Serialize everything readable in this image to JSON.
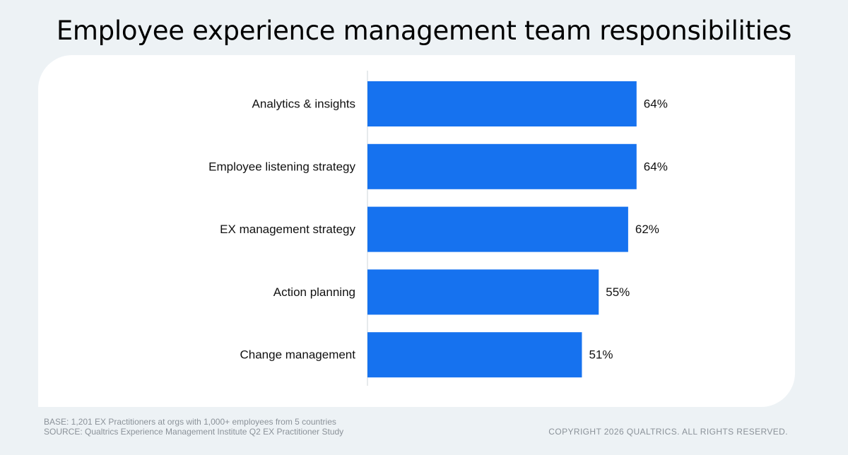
{
  "title": "Employee experience management team responsibilities",
  "footer": {
    "base": "BASE: 1,201 EX Practitioners at orgs with 1,000+ employees from 5 countries",
    "source": "SOURCE: Qualtrics Experience Management Institute Q2 EX Practitioner Study",
    "copyright": "COPYRIGHT 2026 QUALTRICS. ALL RIGHTS RESERVED."
  },
  "colors": {
    "bar": "#1672ef",
    "background": "#edf2f5",
    "card": "#ffffff"
  },
  "chart_data": {
    "type": "bar",
    "orientation": "horizontal",
    "categories": [
      "Analytics & insights",
      "Employee listening strategy",
      "EX management strategy",
      "Action planning",
      "Change management"
    ],
    "values": [
      64,
      64,
      62,
      55,
      51
    ],
    "value_labels": [
      "64%",
      "64%",
      "62%",
      "55%",
      "51%"
    ],
    "unit": "%",
    "xlim": [
      0,
      100
    ],
    "grid": false,
    "legend": "none"
  }
}
